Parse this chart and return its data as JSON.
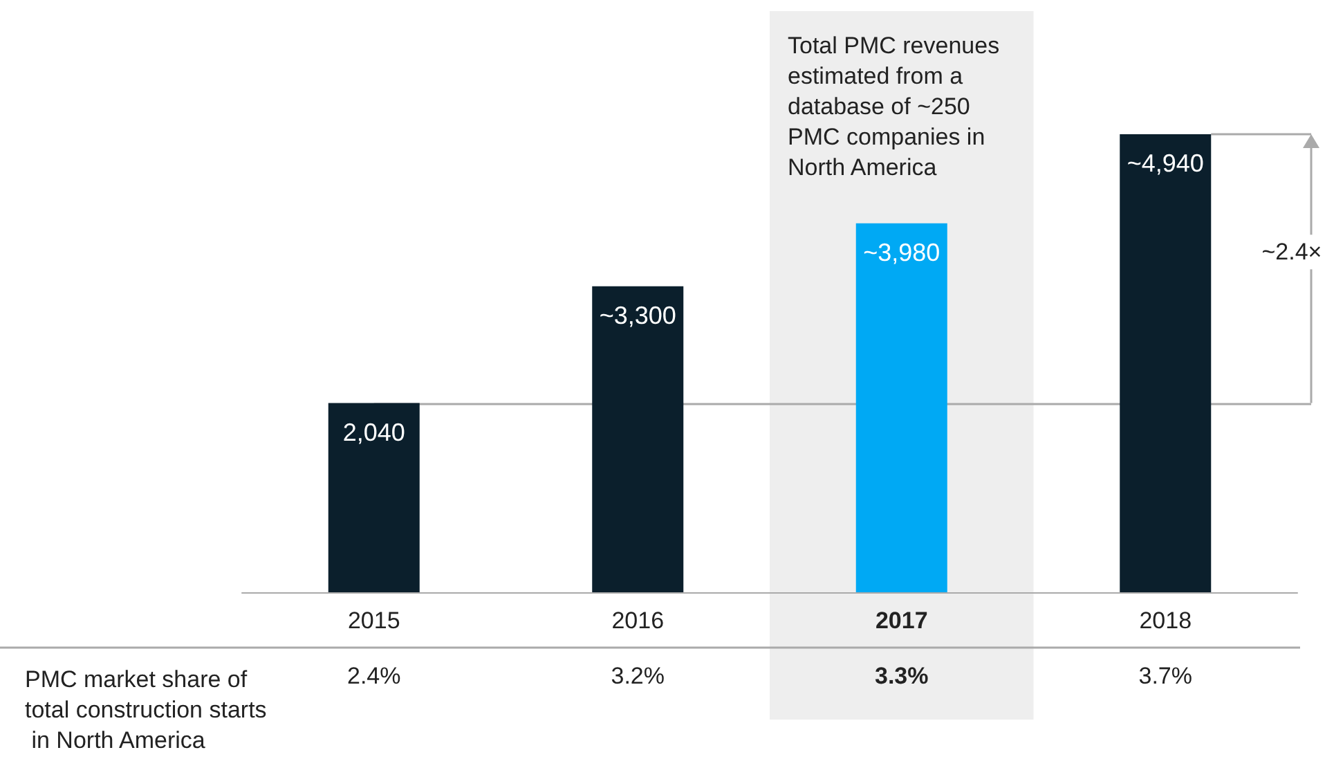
{
  "chart_data": {
    "type": "bar",
    "categories": [
      "2015",
      "2016",
      "2017",
      "2018"
    ],
    "values": [
      2040,
      3300,
      3980,
      4940
    ],
    "value_labels": [
      "2,040",
      "~3,300",
      "~3,980",
      "~4,940"
    ],
    "colors": [
      "#0b1f2c",
      "#0b1f2c",
      "#00a9f4",
      "#0b1f2c"
    ],
    "bands": [
      {
        "axis": "x",
        "from": "2017",
        "to": "2017",
        "label": "Total PMC revenues estimated from a database of ~250 PMC companies in North America",
        "color": "#eeeeee"
      }
    ],
    "ref_lines": [
      {
        "axis": "y",
        "value": 2040,
        "color": "#aaaaaa"
      }
    ],
    "annotations": [
      "PMC market share of total construction starts in North America",
      "2.4%",
      "3.2%",
      "3.3%",
      "3.7%",
      "~2.4×"
    ]
  }
}
